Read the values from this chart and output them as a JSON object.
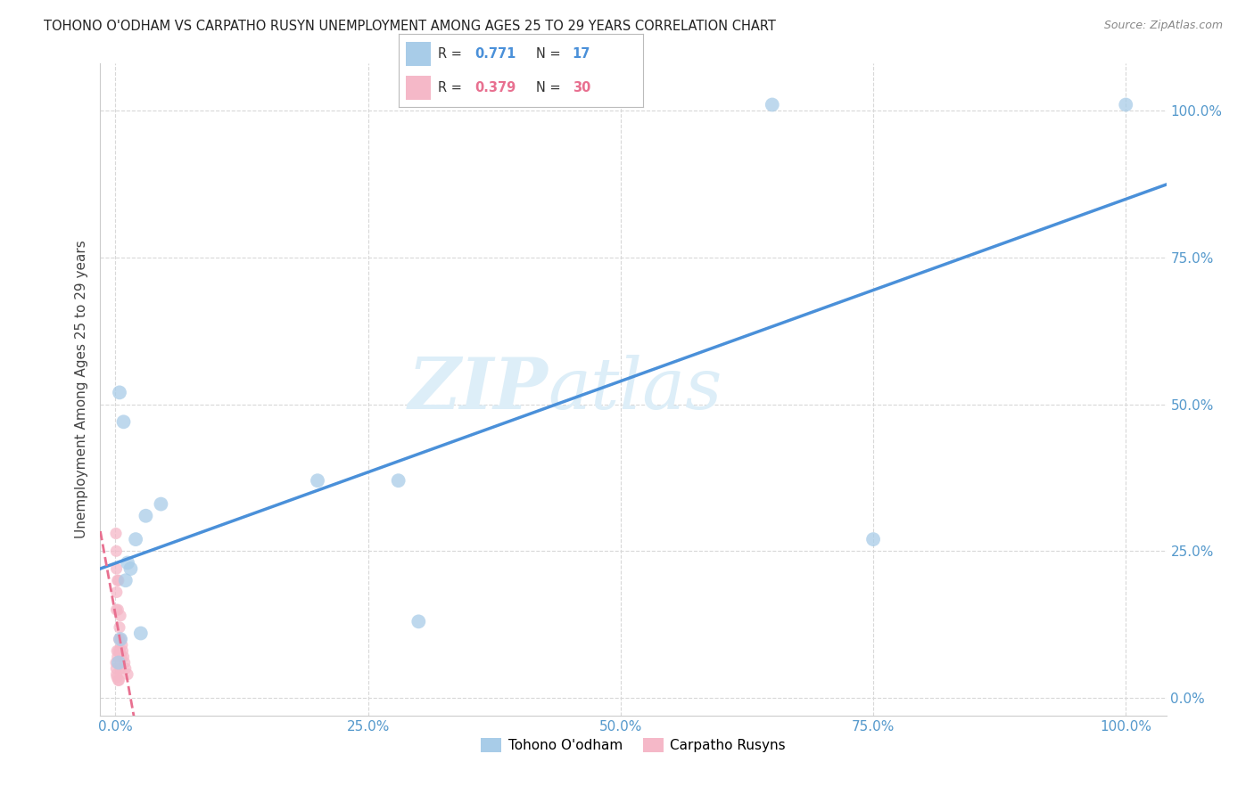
{
  "title": "TOHONO O'ODHAM VS CARPATHO RUSYN UNEMPLOYMENT AMONG AGES 25 TO 29 YEARS CORRELATION CHART",
  "source": "Source: ZipAtlas.com",
  "ylabel": "Unemployment Among Ages 25 to 29 years",
  "background_color": "#ffffff",
  "watermark_line1": "ZIP",
  "watermark_line2": "atlas",
  "legend_r_blue": "0.771",
  "legend_n_blue": "17",
  "legend_r_pink": "0.379",
  "legend_n_pink": "30",
  "legend_label_blue": "Tohono O'odham",
  "legend_label_pink": "Carpatho Rusyns",
  "blue_color": "#a8cce8",
  "pink_color": "#f5b8c8",
  "regression_blue_color": "#4a90d9",
  "regression_pink_color": "#e87090",
  "grid_color": "#d8d8d8",
  "title_color": "#222222",
  "axis_label_color": "#444444",
  "tick_color": "#5599cc",
  "x_ticks": [
    0.0,
    25.0,
    50.0,
    75.0,
    100.0
  ],
  "y_ticks": [
    0.0,
    25.0,
    50.0,
    75.0,
    100.0
  ],
  "xlim": [
    -1.5,
    104
  ],
  "ylim": [
    -3,
    108
  ],
  "blue_x": [
    0.4,
    0.8,
    1.5,
    3.0,
    4.5,
    2.0,
    1.0,
    1.2,
    0.5,
    0.3,
    20.0,
    30.0,
    75.0,
    100.0,
    28.0,
    2.5,
    65.0
  ],
  "blue_y": [
    52.0,
    47.0,
    22.0,
    31.0,
    33.0,
    27.0,
    20.0,
    23.0,
    10.0,
    6.0,
    37.0,
    13.0,
    27.0,
    101.0,
    37.0,
    11.0,
    101.0
  ],
  "pink_x": [
    0.05,
    0.05,
    0.08,
    0.08,
    0.1,
    0.1,
    0.1,
    0.12,
    0.15,
    0.15,
    0.2,
    0.2,
    0.25,
    0.28,
    0.3,
    0.3,
    0.35,
    0.35,
    0.4,
    0.45,
    0.5,
    0.5,
    0.55,
    0.6,
    0.65,
    0.7,
    0.8,
    0.9,
    1.0,
    1.2
  ],
  "pink_y": [
    28.0,
    6.0,
    25.0,
    5.0,
    22.0,
    15.0,
    4.0,
    18.0,
    8.0,
    3.5,
    20.0,
    7.0,
    15.0,
    3.0,
    20.0,
    8.0,
    10.0,
    3.0,
    12.0,
    8.0,
    14.0,
    5.0,
    10.0,
    7.0,
    9.0,
    8.0,
    7.0,
    6.0,
    5.0,
    4.0
  ],
  "blue_marker_size": 130,
  "pink_marker_size": 90
}
